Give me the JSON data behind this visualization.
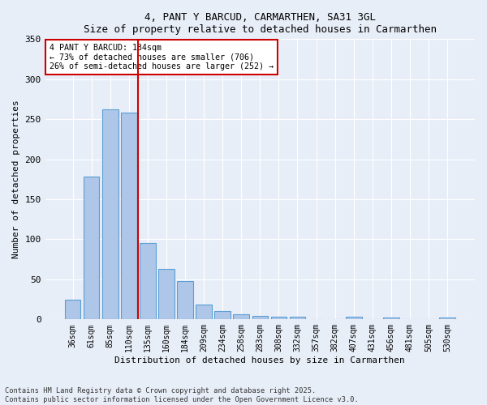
{
  "title1": "4, PANT Y BARCUD, CARMARTHEN, SA31 3GL",
  "title2": "Size of property relative to detached houses in Carmarthen",
  "xlabel": "Distribution of detached houses by size in Carmarthen",
  "ylabel": "Number of detached properties",
  "categories": [
    "36sqm",
    "61sqm",
    "85sqm",
    "110sqm",
    "135sqm",
    "160sqm",
    "184sqm",
    "209sqm",
    "234sqm",
    "258sqm",
    "283sqm",
    "308sqm",
    "332sqm",
    "357sqm",
    "382sqm",
    "407sqm",
    "431sqm",
    "456sqm",
    "481sqm",
    "505sqm",
    "530sqm"
  ],
  "values": [
    25,
    178,
    262,
    258,
    95,
    63,
    48,
    19,
    10,
    6,
    4,
    3,
    3,
    0,
    0,
    3,
    0,
    2,
    0,
    0,
    2
  ],
  "bar_color": "#aec6e8",
  "bar_edge_color": "#5a9fd4",
  "ylim": [
    0,
    350
  ],
  "yticks": [
    0,
    50,
    100,
    150,
    200,
    250,
    300,
    350
  ],
  "marker_index": 4,
  "marker_label": "4 PANT Y BARCUD: 134sqm",
  "annotation_line1": "← 73% of detached houses are smaller (706)",
  "annotation_line2": "26% of semi-detached houses are larger (252) →",
  "annotation_box_color": "#ffffff",
  "annotation_box_edge": "#cc0000",
  "marker_line_color": "#cc0000",
  "bg_color": "#e8eef8",
  "footnote1": "Contains HM Land Registry data © Crown copyright and database right 2025.",
  "footnote2": "Contains public sector information licensed under the Open Government Licence v3.0."
}
